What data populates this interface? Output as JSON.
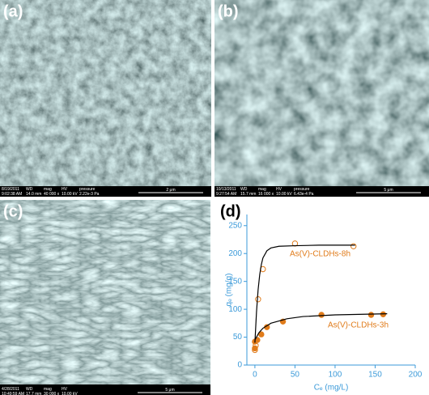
{
  "panels": [
    {
      "label": "(a)",
      "info_header": [
        "8/19/2011",
        "WD",
        "mag",
        "HV",
        "pressure"
      ],
      "info_values": [
        "9:02:38 AM",
        "14.0 mm",
        "40 000 x",
        "10.00 kV",
        "2.22e-3 Pa"
      ],
      "scale_bar": "2 μm"
    },
    {
      "label": "(b)",
      "info_header": [
        "10/13/2011",
        "WD",
        "mag",
        "HV",
        "pressure"
      ],
      "info_values": [
        "9:27:54 AM",
        "15.7 mm",
        "16 000 x",
        "10.00 kV",
        "6.43e-4 Pa"
      ],
      "scale_bar": "5 μm"
    },
    {
      "label": "(c)",
      "info_header": [
        "4/28/2011",
        "WD",
        "mag",
        "HV"
      ],
      "info_values": [
        "10:49:59 AM",
        "17.7 mm",
        "30 000 x",
        "10.00 kV"
      ],
      "scale_bar": "5 μm"
    },
    {
      "label": "(d)"
    }
  ],
  "chart_data": {
    "type": "scatter",
    "xlabel": "Cₑ (mg/L)",
    "ylabel": "qₑ (mg/g)",
    "xlim": [
      -10,
      200
    ],
    "xticks": [
      0,
      50,
      100,
      150,
      200
    ],
    "ylim": [
      0,
      270
    ],
    "yticks": [
      0,
      50,
      100,
      150,
      200,
      250
    ],
    "axis_color": "#3b9ad9",
    "series": [
      {
        "name": "As(V)-CLDHs-8h",
        "color": "#e07b1a",
        "marker": "open",
        "x": [
          0,
          1,
          4,
          10,
          50,
          123
        ],
        "values": [
          27,
          35,
          118,
          172,
          218,
          213
        ]
      },
      {
        "name": "As(V)-CLDHs-3h",
        "color": "#e07b1a",
        "marker": "filled",
        "x": [
          0,
          0,
          3,
          8,
          15,
          35,
          83,
          145,
          160
        ],
        "values": [
          30,
          42,
          45,
          55,
          68,
          78,
          90,
          90,
          91
        ]
      },
      {
        "color": "#000000",
        "marker": "line",
        "x": [
          0,
          2,
          4,
          6,
          8,
          10,
          15,
          20,
          30,
          50,
          80,
          125
        ],
        "values": [
          40,
          95,
          135,
          162,
          180,
          192,
          205,
          210,
          213,
          214,
          215,
          215
        ]
      },
      {
        "color": "#000000",
        "marker": "line",
        "x": [
          0,
          5,
          10,
          20,
          40,
          60,
          100,
          165
        ],
        "values": [
          45,
          58,
          66,
          75,
          83,
          87,
          90,
          92
        ]
      }
    ]
  }
}
